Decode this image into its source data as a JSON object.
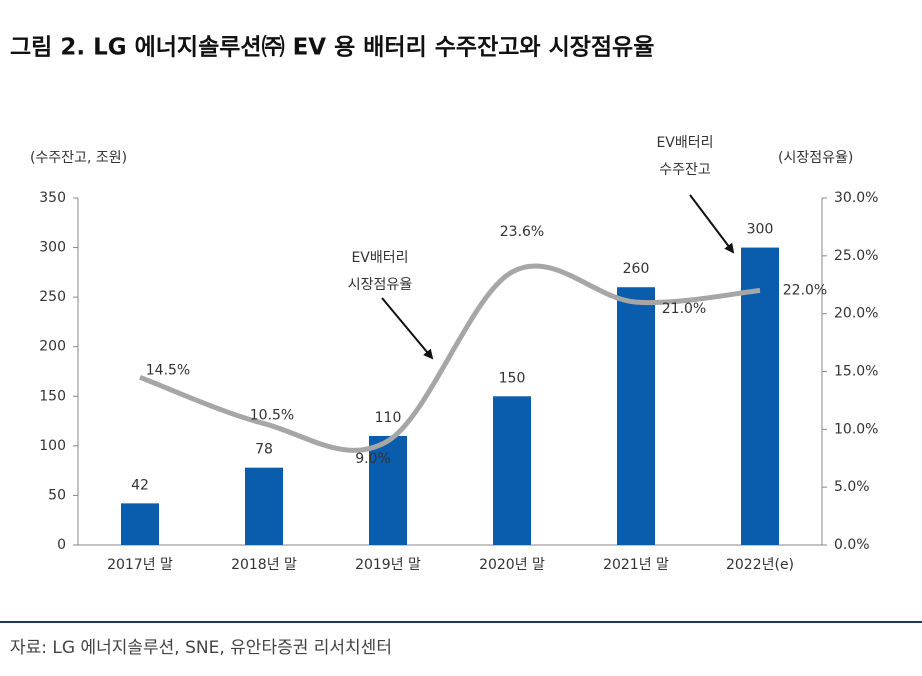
{
  "title": "그림 2. LG 에너지솔루션㈜ EV 용 배터리 수주잔고와 시장점유율",
  "source": "자료: LG 에너지솔루션, SNE, 유안타증권 리서치센터",
  "chart_data": {
    "type": "bar",
    "categories": [
      "2017년 말",
      "2018년 말",
      "2019년 말",
      "2020년 말",
      "2021년 말",
      "2022년(e)"
    ],
    "series": [
      {
        "type": "bar",
        "color": "#0a5cad",
        "values": [
          42,
          78,
          110,
          150,
          260,
          300
        ]
      },
      {
        "type": "line",
        "axis": "y2",
        "color": "#a6a6a6",
        "values": [
          14.5,
          10.5,
          9.0,
          23.6,
          21.0,
          22.0
        ],
        "value_labels": [
          "14.5%",
          "10.5%",
          "9.0%",
          "23.6%",
          "21.0%",
          "22.0%"
        ]
      }
    ],
    "y_label": "(수주잔고, 조원)",
    "y2_label": "(시장점유율)",
    "ylim": [
      0,
      350
    ],
    "yticks": [
      0,
      50,
      100,
      150,
      200,
      250,
      300,
      350
    ],
    "y2lim": [
      0,
      30
    ],
    "y2ticks": [
      {
        "value": 0,
        "label": "0.0%"
      },
      {
        "value": 5,
        "label": "5.0%"
      },
      {
        "value": 10,
        "label": "10.0%"
      },
      {
        "value": 15,
        "label": "15.0%"
      },
      {
        "value": 20,
        "label": "20.0%"
      },
      {
        "value": 25,
        "label": "25.0%"
      },
      {
        "value": 30,
        "label": "30.0%"
      }
    ],
    "annotations": [
      {
        "text": [
          "EV배터리",
          "수주잔고"
        ]
      },
      {
        "text": [
          "EV배터리",
          "시장점유율"
        ]
      }
    ]
  }
}
